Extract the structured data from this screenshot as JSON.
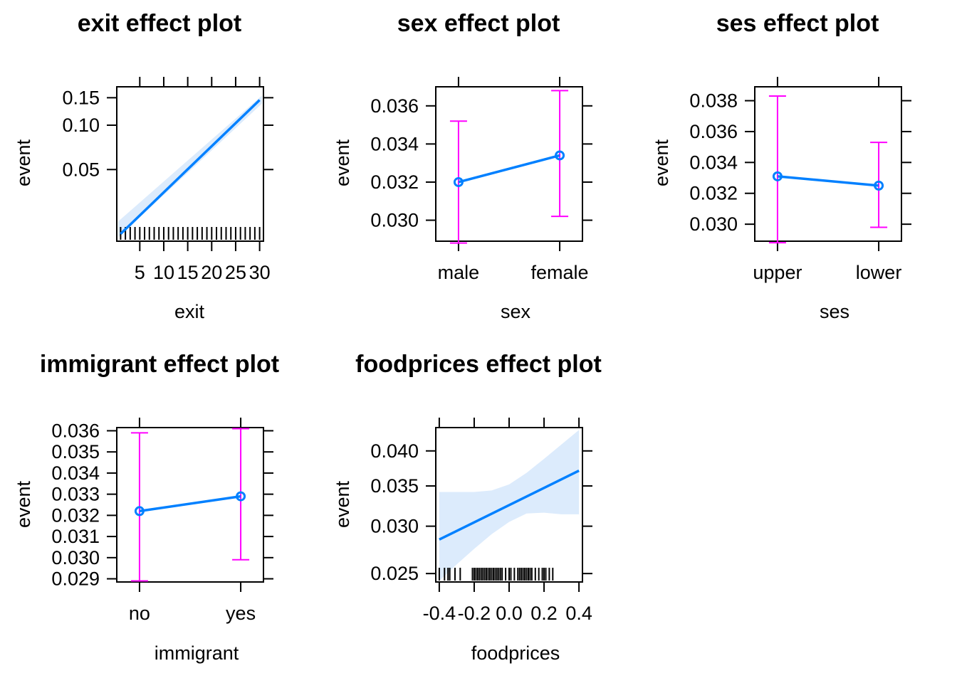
{
  "colors": {
    "line": "#0080FF",
    "band": "#DCEBFC",
    "errorbar": "#FF00FF",
    "rug": "#000000",
    "frame": "#000000"
  },
  "chart_data": [
    {
      "type": "line",
      "title": "exit effect plot",
      "xlabel": "exit",
      "ylabel": "event",
      "x_ticks": [
        5,
        10,
        15,
        20,
        25,
        30
      ],
      "x_tick_labels": [
        "5",
        "10",
        "15",
        "20",
        "25",
        "30"
      ],
      "y_ticks": [
        0.05,
        0.1,
        0.15
      ],
      "y_tick_labels": [
        "0.05",
        "0.10",
        "0.15"
      ],
      "y_scale": "logit",
      "xlim": [
        0.2,
        30.8
      ],
      "ylim": [
        0.0155,
        0.175
      ],
      "fit": {
        "x": [
          1,
          30
        ],
        "y": [
          0.0175,
          0.145
        ]
      },
      "band": {
        "x": [
          0.5,
          30.5
        ],
        "lower": [
          0.0165,
          0.138
        ],
        "upper": [
          0.0215,
          0.155
        ]
      },
      "rug": [
        1,
        2,
        3,
        4,
        5,
        6,
        7,
        8,
        9,
        10,
        11,
        12,
        13,
        14,
        15,
        16,
        17,
        18,
        19,
        20,
        21,
        22,
        23,
        24,
        25,
        26,
        27,
        28,
        29,
        30
      ]
    },
    {
      "type": "line",
      "title": "sex effect plot",
      "xlabel": "sex",
      "ylabel": "event",
      "categories": [
        "male",
        "female"
      ],
      "values": [
        0.032,
        0.0334
      ],
      "lower": [
        0.0288,
        0.0302
      ],
      "upper": [
        0.0352,
        0.0368
      ],
      "y_ticks": [
        0.03,
        0.032,
        0.034,
        0.036
      ],
      "y_tick_labels": [
        "0.030",
        "0.032",
        "0.034",
        "0.036"
      ],
      "ylim": [
        0.0289,
        0.037
      ]
    },
    {
      "type": "line",
      "title": "ses effect plot",
      "xlabel": "ses",
      "ylabel": "event",
      "categories": [
        "upper",
        "lower"
      ],
      "values": [
        0.0331,
        0.0325
      ],
      "lower": [
        0.0288,
        0.0298
      ],
      "upper": [
        0.0383,
        0.0353
      ],
      "y_ticks": [
        0.03,
        0.032,
        0.034,
        0.036,
        0.038
      ],
      "y_tick_labels": [
        "0.030",
        "0.032",
        "0.034",
        "0.036",
        "0.038"
      ],
      "ylim": [
        0.0289,
        0.0389
      ]
    },
    {
      "type": "line",
      "title": "immigrant effect plot",
      "xlabel": "immigrant",
      "ylabel": "event",
      "categories": [
        "no",
        "yes"
      ],
      "values": [
        0.0322,
        0.0329
      ],
      "lower": [
        0.0289,
        0.0299
      ],
      "upper": [
        0.0359,
        0.0361
      ],
      "y_ticks": [
        0.029,
        0.03,
        0.031,
        0.032,
        0.033,
        0.034,
        0.035,
        0.036
      ],
      "y_tick_labels": [
        "0.029",
        "0.030",
        "0.031",
        "0.032",
        "0.033",
        "0.034",
        "0.035",
        "0.036"
      ],
      "ylim": [
        0.02885,
        0.03615
      ]
    },
    {
      "type": "line",
      "title": "foodprices effect plot",
      "xlabel": "foodprices",
      "ylabel": "event",
      "x_ticks": [
        -0.4,
        -0.2,
        0.0,
        0.2,
        0.4
      ],
      "x_tick_labels": [
        "-0.4",
        "-0.2",
        "0.0",
        "0.2",
        "0.4"
      ],
      "y_ticks": [
        0.025,
        0.03,
        0.035,
        0.04
      ],
      "y_tick_labels": [
        "0.025",
        "0.030",
        "0.035",
        "0.040"
      ],
      "y_scale": "logit",
      "xlim": [
        -0.42,
        0.42
      ],
      "ylim": [
        0.0242,
        0.0437
      ],
      "fit": {
        "x": [
          -0.4,
          0.4
        ],
        "y": [
          0.0285,
          0.0371
        ]
      },
      "band": {
        "x": [
          -0.4,
          -0.3,
          -0.2,
          -0.1,
          0.0,
          0.1,
          0.2,
          0.3,
          0.4
        ],
        "lower": [
          0.0243,
          0.0259,
          0.0275,
          0.0291,
          0.0305,
          0.0315,
          0.0316,
          0.0314,
          0.0314
        ],
        "upper": [
          0.0342,
          0.0342,
          0.0342,
          0.0344,
          0.0352,
          0.0368,
          0.0388,
          0.041,
          0.0433
        ]
      },
      "rug": [
        -0.4,
        -0.37,
        -0.35,
        -0.34,
        -0.31,
        -0.28,
        -0.21,
        -0.2,
        -0.19,
        -0.18,
        -0.17,
        -0.16,
        -0.15,
        -0.14,
        -0.13,
        -0.12,
        -0.11,
        -0.1,
        -0.09,
        -0.08,
        -0.07,
        -0.06,
        -0.05,
        -0.04,
        -0.02,
        0.0,
        0.01,
        0.03,
        0.05,
        0.06,
        0.07,
        0.08,
        0.09,
        0.1,
        0.11,
        0.12,
        0.13,
        0.15,
        0.17,
        0.19,
        0.2,
        0.21,
        0.23,
        0.25
      ]
    }
  ]
}
